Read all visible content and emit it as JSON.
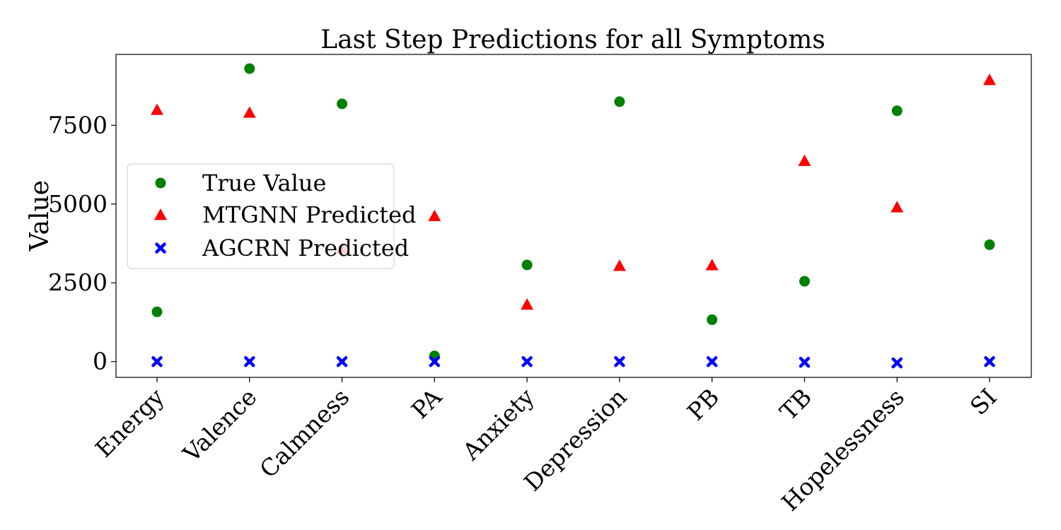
{
  "chart_data": {
    "type": "scatter",
    "title": "Last Step Predictions for all Symptoms",
    "xlabel": "",
    "ylabel": "Value",
    "categories": [
      "Energy",
      "Valence",
      "Calmness",
      "PA",
      "Anxiety",
      "Depression",
      "PB",
      "TB",
      "Hopelessness",
      "SI"
    ],
    "ylim": [
      -500,
      9750
    ],
    "yticks": [
      0,
      2500,
      5000,
      7500
    ],
    "ytick_labels": [
      "0",
      "2500",
      "5000",
      "7500"
    ],
    "grid": false,
    "legend_position": "center-left",
    "series": [
      {
        "name": "True Value",
        "marker": "circle",
        "color": "#008000",
        "values": [
          1580,
          9300,
          8180,
          180,
          3070,
          8250,
          1330,
          2550,
          7960,
          3710
        ]
      },
      {
        "name": "MTGNN Predicted",
        "marker": "triangle",
        "color": "#ff0000",
        "values": [
          7990,
          7900,
          3580,
          4620,
          1810,
          3040,
          3060,
          6370,
          4900,
          8940
        ]
      },
      {
        "name": "AGCRN Predicted",
        "marker": "x",
        "color": "#0000ff",
        "values": [
          0,
          0,
          0,
          0,
          0,
          0,
          0,
          -20,
          -40,
          0
        ]
      }
    ]
  }
}
